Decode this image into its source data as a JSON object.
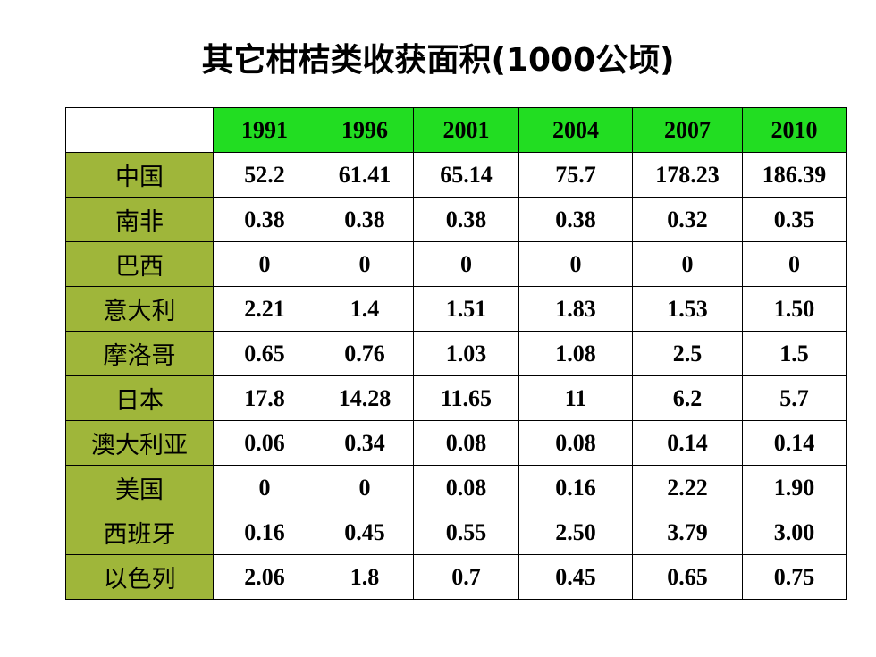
{
  "title": "其它柑桔类收获面积(1000公顷)",
  "table": {
    "years": [
      "1991",
      "1996",
      "2001",
      "2004",
      "2007",
      "2010"
    ],
    "rows": [
      {
        "country": "中国",
        "values": [
          "52.2",
          "61.41",
          "65.14",
          "75.7",
          "178.23",
          "186.39"
        ]
      },
      {
        "country": "南非",
        "values": [
          "0.38",
          "0.38",
          "0.38",
          "0.38",
          "0.32",
          "0.35"
        ]
      },
      {
        "country": "巴西",
        "values": [
          "0",
          "0",
          "0",
          "0",
          "0",
          "0"
        ]
      },
      {
        "country": "意大利",
        "values": [
          "2.21",
          "1.4",
          "1.51",
          "1.83",
          "1.53",
          "1.50"
        ]
      },
      {
        "country": "摩洛哥",
        "values": [
          "0.65",
          "0.76",
          "1.03",
          "1.08",
          "2.5",
          "1.5"
        ]
      },
      {
        "country": "日本",
        "values": [
          "17.8",
          "14.28",
          "11.65",
          "11",
          "6.2",
          "5.7"
        ]
      },
      {
        "country": "澳大利亚",
        "values": [
          "0.06",
          "0.34",
          "0.08",
          "0.08",
          "0.14",
          "0.14"
        ]
      },
      {
        "country": "美国",
        "values": [
          "0",
          "0",
          "0.08",
          "0.16",
          "2.22",
          "1.90"
        ]
      },
      {
        "country": "西班牙",
        "values": [
          "0.16",
          "0.45",
          "0.55",
          "2.50",
          "3.79",
          "3.00"
        ]
      },
      {
        "country": "以色列",
        "values": [
          "2.06",
          "1.8",
          "0.7",
          "0.45",
          "0.65",
          "0.75"
        ]
      }
    ]
  },
  "colors": {
    "header_bg": "#22dd22",
    "country_bg": "#9fb63a"
  }
}
